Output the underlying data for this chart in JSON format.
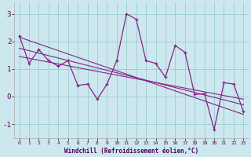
{
  "xlabel": "Windchill (Refroidissement éolien,°C)",
  "bg_color": "#cce8ee",
  "line_color": "#882288",
  "grid_color": "#99cccc",
  "yticks": [
    -1,
    0,
    1,
    2,
    3
  ],
  "xlim": [
    -0.5,
    23.5
  ],
  "ylim": [
    -1.5,
    3.4
  ],
  "x_data": [
    0,
    1,
    2,
    3,
    4,
    5,
    6,
    7,
    8,
    9,
    10,
    11,
    12,
    13,
    14,
    15,
    16,
    17,
    18,
    19,
    20,
    21,
    22,
    23
  ],
  "y_main": [
    2.2,
    1.2,
    1.7,
    1.3,
    1.1,
    1.3,
    0.4,
    0.45,
    -0.1,
    0.45,
    1.3,
    3.0,
    2.8,
    1.3,
    1.2,
    0.7,
    1.85,
    1.6,
    0.07,
    0.1,
    -1.2,
    0.5,
    0.45,
    -0.55
  ],
  "regression_lines": [
    {
      "x0": 0,
      "y0": 2.15,
      "x1": 23,
      "y1": -0.65
    },
    {
      "x0": 0,
      "y0": 1.75,
      "x1": 23,
      "y1": -0.3
    },
    {
      "x0": 0,
      "y0": 1.45,
      "x1": 23,
      "y1": -0.1
    }
  ]
}
